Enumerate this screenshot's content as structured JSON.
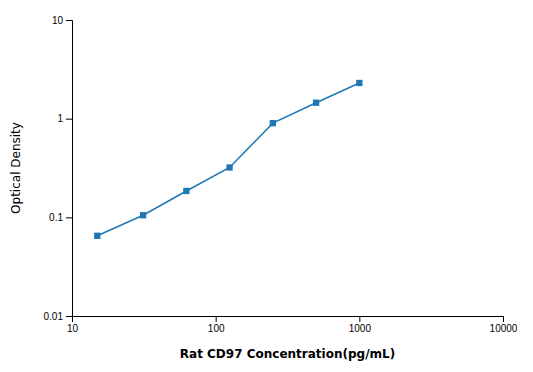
{
  "chart_data": {
    "type": "line",
    "xlabel": "Rat CD97 Concentration(pg/mL)",
    "ylabel": "Optical Density",
    "x": [
      15,
      31.25,
      62.5,
      125,
      250,
      500,
      1000
    ],
    "values": [
      0.065,
      0.105,
      0.185,
      0.32,
      0.9,
      1.45,
      2.3
    ],
    "xlim": [
      10,
      10000
    ],
    "ylim": [
      0.01,
      10
    ],
    "xticks": [
      10,
      100,
      1000,
      10000
    ],
    "yticks": [
      0.01,
      0.1,
      1,
      10
    ],
    "log": true,
    "grid": false,
    "marker": "square"
  }
}
